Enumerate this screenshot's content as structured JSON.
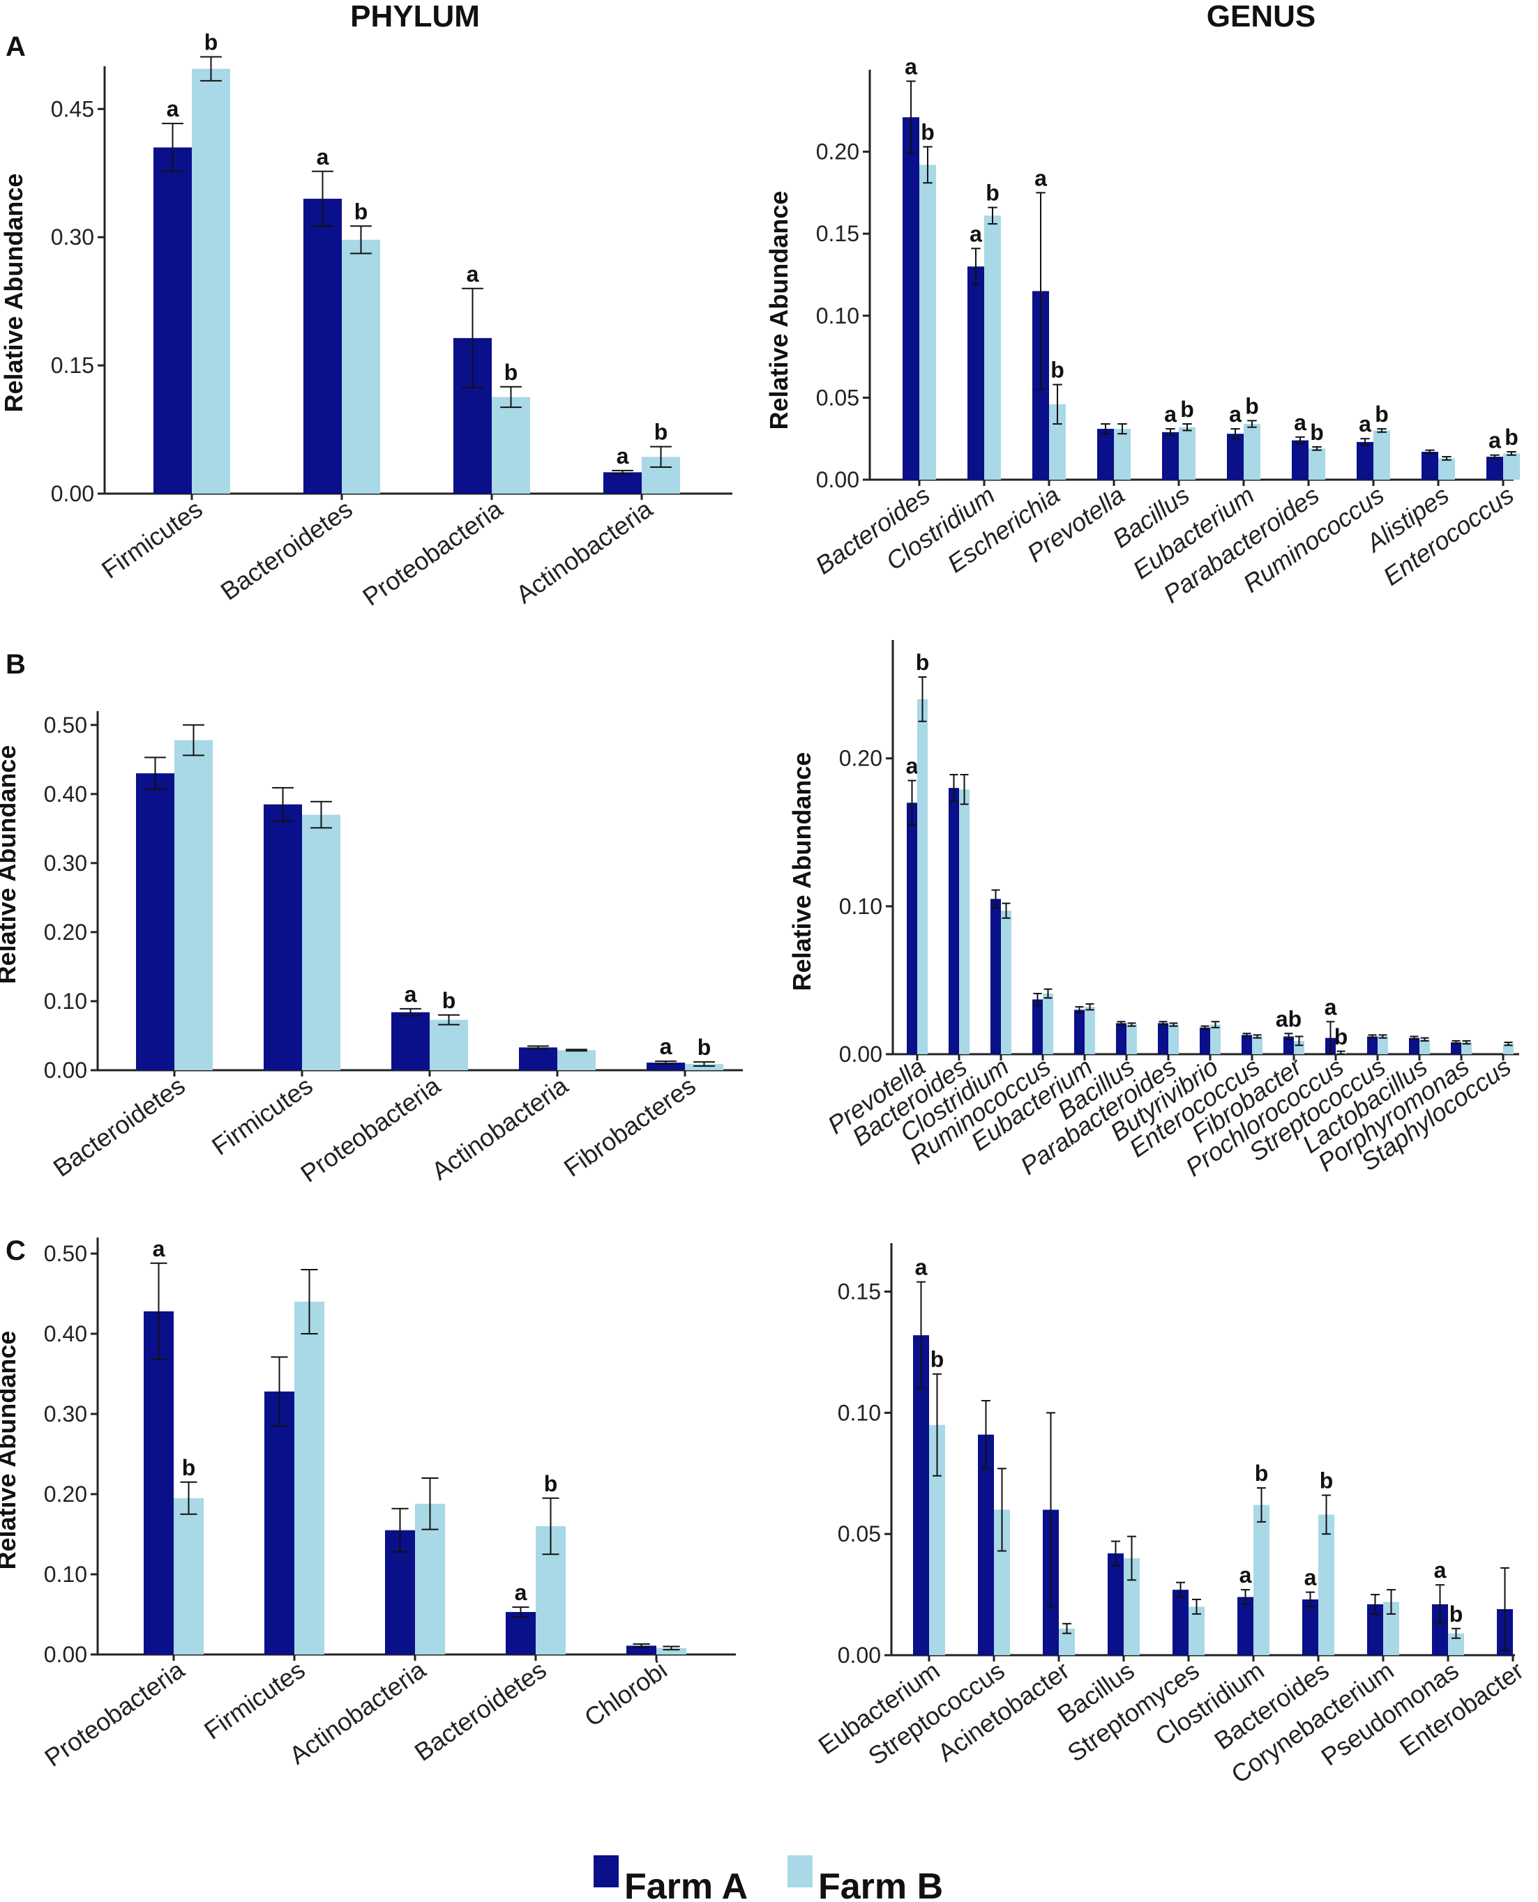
{
  "column_headers": {
    "left": "PHYLUM",
    "right": "GENUS"
  },
  "colors": {
    "farm_a": "#0a0f8a",
    "farm_b": "#a9d8e6",
    "axis": "#222222",
    "error": "#111111"
  },
  "legend": {
    "farm_a": "Farm A",
    "farm_b": "Farm B"
  },
  "chart_data": [
    {
      "id": "A-phylum",
      "panel": "A",
      "type": "bar",
      "title": "PHYLUM",
      "ylabel": "Relative Abundance",
      "ylim": [
        0,
        0.5
      ],
      "ticks": [
        0,
        0.15,
        0.3,
        0.45
      ],
      "tick_labels": [
        "0.00",
        "0.15",
        "0.30",
        "0.45"
      ],
      "italic": false,
      "categories": [
        "Firmicutes",
        "Bacteroidetes",
        "Proteobacteria",
        "Actinobacteria"
      ],
      "series": [
        {
          "name": "Farm A",
          "values": [
            0.405,
            0.345,
            0.182,
            0.025
          ],
          "errors": [
            0.028,
            0.032,
            0.058,
            0.002
          ],
          "sig": [
            "a",
            "a",
            "a",
            "a"
          ]
        },
        {
          "name": "Farm B",
          "values": [
            0.497,
            0.297,
            0.113,
            0.043
          ],
          "errors": [
            0.014,
            0.016,
            0.012,
            0.012
          ],
          "sig": [
            "b",
            "b",
            "b",
            "b"
          ]
        }
      ]
    },
    {
      "id": "A-genus",
      "panel": "A",
      "type": "bar",
      "title": "GENUS",
      "ylabel": "Relative Abundance",
      "ylim": [
        0,
        0.25
      ],
      "ticks": [
        0,
        0.05,
        0.1,
        0.15,
        0.2
      ],
      "tick_labels": [
        "0.00",
        "0.05",
        "0.10",
        "0.15",
        "0.20"
      ],
      "italic": true,
      "categories": [
        "Bacteroides",
        "Clostridium",
        "Escherichia",
        "Prevotella",
        "Bacillus",
        "Eubacterium",
        "Parabacteroides",
        "Ruminococcus",
        "Alistipes",
        "Enterococcus"
      ],
      "series": [
        {
          "name": "Farm A",
          "values": [
            0.221,
            0.13,
            0.115,
            0.031,
            0.029,
            0.028,
            0.024,
            0.023,
            0.017,
            0.014
          ],
          "errors": [
            0.022,
            0.011,
            0.06,
            0.003,
            0.002,
            0.003,
            0.002,
            0.002,
            0.001,
            0.001
          ],
          "sig": [
            "a",
            "a",
            "a",
            "",
            "a",
            "a",
            "a",
            "a",
            "",
            "a"
          ]
        },
        {
          "name": "Farm B",
          "values": [
            0.192,
            0.161,
            0.046,
            0.031,
            0.032,
            0.034,
            0.019,
            0.03,
            0.013,
            0.016
          ],
          "errors": [
            0.011,
            0.005,
            0.012,
            0.003,
            0.002,
            0.002,
            0.001,
            0.001,
            0.001,
            0.001
          ],
          "sig": [
            "b",
            "b",
            "b",
            "",
            "b",
            "b",
            "b",
            "b",
            "",
            "b"
          ]
        }
      ]
    },
    {
      "id": "B-phylum",
      "panel": "B",
      "type": "bar",
      "title": "",
      "ylabel": "Relative Abundance",
      "ylim": [
        0,
        0.52
      ],
      "ticks": [
        0,
        0.1,
        0.2,
        0.3,
        0.4,
        0.5
      ],
      "tick_labels": [
        "0.00",
        "0.10",
        "0.20",
        "0.30",
        "0.40",
        "0.50"
      ],
      "italic": false,
      "categories": [
        "Bacteroidetes",
        "Firmicutes",
        "Proteobacteria",
        "Actinobacteria",
        "Fibrobacteres"
      ],
      "series": [
        {
          "name": "Farm A",
          "values": [
            0.43,
            0.385,
            0.084,
            0.033,
            0.011
          ],
          "errors": [
            0.023,
            0.024,
            0.005,
            0.002,
            0.002
          ],
          "sig": [
            "",
            "",
            "a",
            "",
            "a"
          ]
        },
        {
          "name": "Farm B",
          "values": [
            0.478,
            0.37,
            0.073,
            0.029,
            0.009
          ],
          "errors": [
            0.022,
            0.019,
            0.007,
            0.001,
            0.003
          ],
          "sig": [
            "",
            "",
            "b",
            "",
            "b"
          ]
        }
      ]
    },
    {
      "id": "B-genus",
      "panel": "B",
      "type": "bar",
      "title": "",
      "ylabel": "Relative Abundance",
      "ylim": [
        0,
        0.28
      ],
      "ticks": [
        0,
        0.1,
        0.2
      ],
      "tick_labels": [
        "0.00",
        "0.10",
        "0.20"
      ],
      "italic": true,
      "categories": [
        "Prevotella",
        "Bacteroides",
        "Clostridium",
        "Ruminococcus",
        "Eubacterium",
        "Bacillus",
        "Parabacteroides",
        "Butyrivibrio",
        "Enterococcus",
        "Fibrobacter",
        "Prochlorococcus",
        "Streptococcus",
        "Lactobacillus",
        "Porphyromonas",
        "Staphylococcus"
      ],
      "series": [
        {
          "name": "Farm A",
          "values": [
            0.17,
            0.18,
            0.105,
            0.037,
            0.03,
            0.021,
            0.021,
            0.018,
            0.013,
            0.012,
            0.011,
            0.012,
            0.011,
            0.008,
            0.0
          ],
          "errors": [
            0.015,
            0.009,
            0.006,
            0.004,
            0.002,
            0.001,
            0.001,
            0.001,
            0.001,
            0.002,
            0.011,
            0.001,
            0.001,
            0.001,
            0.0
          ],
          "sig": [
            "a",
            "",
            "",
            "",
            "",
            "",
            "",
            "",
            "",
            "ab",
            "a",
            "",
            "",
            "",
            ""
          ]
        },
        {
          "name": "Farm B",
          "values": [
            0.24,
            0.179,
            0.097,
            0.041,
            0.032,
            0.02,
            0.02,
            0.02,
            0.012,
            0.009,
            0.001,
            0.012,
            0.01,
            0.008,
            0.007
          ],
          "errors": [
            0.015,
            0.01,
            0.005,
            0.003,
            0.002,
            0.001,
            0.001,
            0.002,
            0.001,
            0.003,
            0.001,
            0.001,
            0.001,
            0.001,
            0.001
          ],
          "sig": [
            "b",
            "",
            "",
            "",
            "",
            "",
            "",
            "",
            "",
            "",
            "b",
            "",
            "",
            "",
            ""
          ]
        }
      ]
    },
    {
      "id": "C-phylum",
      "panel": "C",
      "type": "bar",
      "title": "",
      "ylabel": "Relative Abundance",
      "ylim": [
        0,
        0.52
      ],
      "ticks": [
        0,
        0.1,
        0.2,
        0.3,
        0.4,
        0.5
      ],
      "tick_labels": [
        "0.00",
        "0.10",
        "0.20",
        "0.30",
        "0.40",
        "0.50"
      ],
      "italic": false,
      "categories": [
        "Proteobacteria",
        "Firmicutes",
        "Actinobacteria",
        "Bacteroidetes",
        "Chlorobi"
      ],
      "series": [
        {
          "name": "Farm A",
          "values": [
            0.428,
            0.328,
            0.155,
            0.053,
            0.011
          ],
          "errors": [
            0.06,
            0.043,
            0.027,
            0.006,
            0.002
          ],
          "sig": [
            "a",
            "",
            "",
            "a",
            ""
          ]
        },
        {
          "name": "Farm B",
          "values": [
            0.195,
            0.44,
            0.188,
            0.16,
            0.008
          ],
          "errors": [
            0.02,
            0.04,
            0.032,
            0.035,
            0.002
          ],
          "sig": [
            "b",
            "",
            "",
            "b",
            ""
          ]
        }
      ]
    },
    {
      "id": "C-genus",
      "panel": "C",
      "type": "bar",
      "title": "",
      "ylabel": "",
      "ylim": [
        0,
        0.17
      ],
      "ticks": [
        0,
        0.05,
        0.1,
        0.15
      ],
      "tick_labels": [
        "0.00",
        "0.05",
        "0.10",
        "0.15"
      ],
      "italic": false,
      "categories": [
        "Eubacterium",
        "Streptococcus",
        "Acinetobacter",
        "Bacillus",
        "Streptomyces",
        "Clostridium",
        "Bacteroides",
        "Corynebacterium",
        "Pseudomonas",
        "Enterobacter"
      ],
      "series": [
        {
          "name": "Farm A",
          "values": [
            0.132,
            0.091,
            0.06,
            0.042,
            0.027,
            0.024,
            0.023,
            0.021,
            0.021,
            0.019
          ],
          "errors": [
            0.022,
            0.014,
            0.04,
            0.005,
            0.003,
            0.003,
            0.003,
            0.004,
            0.008,
            0.017
          ],
          "sig": [
            "a",
            "",
            "",
            "",
            "",
            "a",
            "a",
            "",
            "a",
            ""
          ]
        },
        {
          "name": "Farm B",
          "values": [
            0.095,
            0.06,
            0.011,
            0.04,
            0.02,
            0.062,
            0.058,
            0.022,
            0.009,
            0.0
          ],
          "errors": [
            0.021,
            0.017,
            0.002,
            0.009,
            0.003,
            0.007,
            0.008,
            0.005,
            0.002,
            0.0
          ],
          "sig": [
            "b",
            "",
            "",
            "",
            "",
            "b",
            "b",
            "",
            "b",
            ""
          ]
        }
      ]
    }
  ]
}
